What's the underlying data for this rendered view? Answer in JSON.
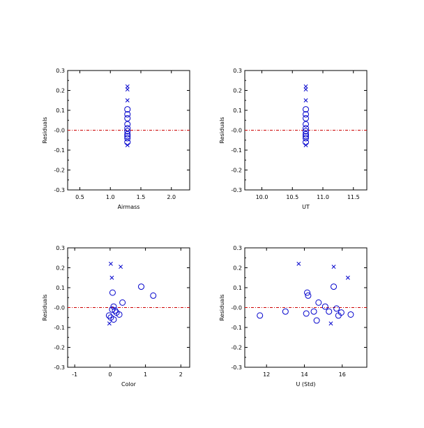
{
  "colors": {
    "marker": "#0000cc",
    "zero_line": "#cc0000",
    "axis": "#000000",
    "background": "#ffffff"
  },
  "chart_data": [
    {
      "type": "scatter",
      "title": "",
      "xlabel": "Airmass",
      "ylabel": "Residuals",
      "xlim": [
        0.3,
        2.3
      ],
      "ylim": [
        -0.3,
        0.3
      ],
      "xticks": [
        0.5,
        1.0,
        1.5,
        2.0
      ],
      "xtick_labels": [
        "0.5",
        "1.0",
        "1.5",
        "2.0"
      ],
      "yticks": [
        -0.3,
        -0.2,
        -0.1,
        0.0,
        0.1,
        0.2,
        0.3
      ],
      "ytick_labels": [
        "-0.3",
        "-0.2",
        "-0.1",
        "-0.0",
        "0.1",
        "0.2",
        "0.3"
      ],
      "reference_line_y": 0.0,
      "grid": false,
      "series": [
        {
          "marker": "circle",
          "points": [
            [
              1.28,
              0.105
            ],
            [
              1.28,
              0.08
            ],
            [
              1.28,
              0.06
            ],
            [
              1.28,
              0.03
            ],
            [
              1.28,
              0.01
            ],
            [
              1.28,
              -0.005
            ],
            [
              1.28,
              -0.02
            ],
            [
              1.28,
              -0.03
            ],
            [
              1.28,
              -0.04
            ],
            [
              1.28,
              -0.06
            ]
          ]
        },
        {
          "marker": "x",
          "points": [
            [
              1.28,
              0.22
            ],
            [
              1.28,
              0.205
            ],
            [
              1.28,
              0.15
            ],
            [
              1.28,
              -0.075
            ]
          ]
        }
      ]
    },
    {
      "type": "scatter",
      "title": "",
      "xlabel": "UT",
      "ylabel": "Residuals",
      "xlim": [
        9.72,
        11.72
      ],
      "ylim": [
        -0.3,
        0.3
      ],
      "xticks": [
        10.0,
        10.5,
        11.0,
        11.5
      ],
      "xtick_labels": [
        "10.0",
        "10.5",
        "11.0",
        "11.5"
      ],
      "yticks": [
        -0.3,
        -0.2,
        -0.1,
        0.0,
        0.1,
        0.2,
        0.3
      ],
      "ytick_labels": [
        "-0.3",
        "-0.2",
        "-0.1",
        "-0.0",
        "0.1",
        "0.2",
        "0.3"
      ],
      "reference_line_y": 0.0,
      "grid": false,
      "series": [
        {
          "marker": "circle",
          "points": [
            [
              10.72,
              0.105
            ],
            [
              10.72,
              0.08
            ],
            [
              10.72,
              0.06
            ],
            [
              10.72,
              0.03
            ],
            [
              10.72,
              0.01
            ],
            [
              10.72,
              -0.005
            ],
            [
              10.72,
              -0.02
            ],
            [
              10.72,
              -0.03
            ],
            [
              10.72,
              -0.04
            ],
            [
              10.72,
              -0.06
            ]
          ]
        },
        {
          "marker": "x",
          "points": [
            [
              10.72,
              0.22
            ],
            [
              10.72,
              0.205
            ],
            [
              10.72,
              0.15
            ],
            [
              10.72,
              -0.075
            ]
          ]
        }
      ]
    },
    {
      "type": "scatter",
      "title": "",
      "xlabel": "Color",
      "ylabel": "Residuals",
      "xlim": [
        -1.2,
        2.25
      ],
      "ylim": [
        -0.3,
        0.3
      ],
      "xticks": [
        -1,
        0,
        1,
        2
      ],
      "xtick_labels": [
        "-1",
        "0",
        "1",
        "2"
      ],
      "yticks": [
        -0.3,
        -0.2,
        -0.1,
        0.0,
        0.1,
        0.2,
        0.3
      ],
      "ytick_labels": [
        "-0.3",
        "-0.2",
        "-0.1",
        "-0.0",
        "0.1",
        "0.2",
        "0.3"
      ],
      "reference_line_y": 0.0,
      "grid": false,
      "series": [
        {
          "marker": "circle",
          "points": [
            [
              0.88,
              0.105
            ],
            [
              1.22,
              0.06
            ],
            [
              0.07,
              0.075
            ],
            [
              0.35,
              0.025
            ],
            [
              0.1,
              0.005
            ],
            [
              0.06,
              -0.01
            ],
            [
              0.14,
              -0.015
            ],
            [
              0.18,
              -0.025
            ],
            [
              0.26,
              -0.035
            ],
            [
              -0.03,
              -0.04
            ],
            [
              0.02,
              -0.05
            ],
            [
              0.1,
              -0.06
            ]
          ]
        },
        {
          "marker": "x",
          "points": [
            [
              0.02,
              0.22
            ],
            [
              0.3,
              0.205
            ],
            [
              0.05,
              0.15
            ],
            [
              -0.02,
              -0.08
            ]
          ]
        }
      ]
    },
    {
      "type": "scatter",
      "title": "",
      "xlabel": "U (Std)",
      "ylabel": "Residuals",
      "xlim": [
        10.85,
        17.3
      ],
      "ylim": [
        -0.3,
        0.3
      ],
      "xticks": [
        12,
        14,
        16
      ],
      "xtick_labels": [
        "12",
        "14",
        "16"
      ],
      "yticks": [
        -0.3,
        -0.2,
        -0.1,
        0.0,
        0.1,
        0.2,
        0.3
      ],
      "ytick_labels": [
        "-0.3",
        "-0.2",
        "-0.1",
        "-0.0",
        "0.1",
        "0.2",
        "0.3"
      ],
      "reference_line_y": 0.0,
      "grid": false,
      "series": [
        {
          "marker": "circle",
          "points": [
            [
              11.65,
              -0.04
            ],
            [
              13.0,
              -0.02
            ],
            [
              14.15,
              0.075
            ],
            [
              14.2,
              0.06
            ],
            [
              14.1,
              -0.03
            ],
            [
              14.5,
              -0.02
            ],
            [
              14.75,
              0.025
            ],
            [
              14.65,
              -0.065
            ],
            [
              15.1,
              0.005
            ],
            [
              15.3,
              -0.02
            ],
            [
              15.55,
              0.105
            ],
            [
              15.7,
              -0.005
            ],
            [
              15.8,
              -0.04
            ],
            [
              15.95,
              -0.025
            ],
            [
              16.45,
              -0.035
            ]
          ]
        },
        {
          "marker": "x",
          "points": [
            [
              13.7,
              0.22
            ],
            [
              15.55,
              0.205
            ],
            [
              16.3,
              0.15
            ],
            [
              15.4,
              -0.08
            ]
          ]
        }
      ]
    }
  ]
}
